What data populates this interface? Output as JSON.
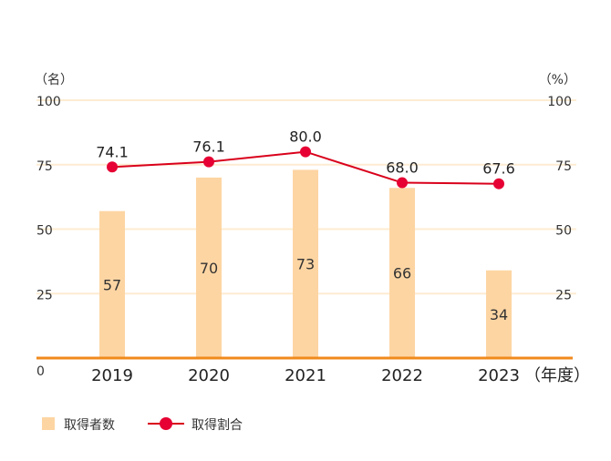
{
  "chart_data": {
    "type": "bar+line",
    "categories": [
      "2019",
      "2020",
      "2021",
      "2022",
      "2023"
    ],
    "series": [
      {
        "name": "取得者数",
        "type": "bar",
        "axis": "left",
        "values": [
          57,
          70,
          73,
          66,
          34
        ]
      },
      {
        "name": "取得割合",
        "type": "line",
        "axis": "right",
        "values": [
          74.1,
          76.1,
          80.0,
          68.0,
          67.6
        ],
        "value_labels": [
          "74.1",
          "76.1",
          "80.0",
          "68.0",
          "67.6"
        ]
      }
    ],
    "left_axis": {
      "unit": "（名）",
      "ylim": [
        0,
        100
      ],
      "ticks": [
        "0",
        "25",
        "50",
        "75",
        "100"
      ]
    },
    "right_axis": {
      "unit": "（%）",
      "ylim": [
        0,
        100
      ],
      "ticks": [
        "25",
        "50",
        "75",
        "100"
      ]
    },
    "x_unit": "（年度）",
    "grid": true,
    "legend_position": "bottom-left",
    "colors": {
      "bar": "#fdd5a3",
      "line": "#d9001b",
      "marker": "#e60033",
      "baseline": "#f08a1c",
      "grid": "#fdecd2"
    }
  }
}
